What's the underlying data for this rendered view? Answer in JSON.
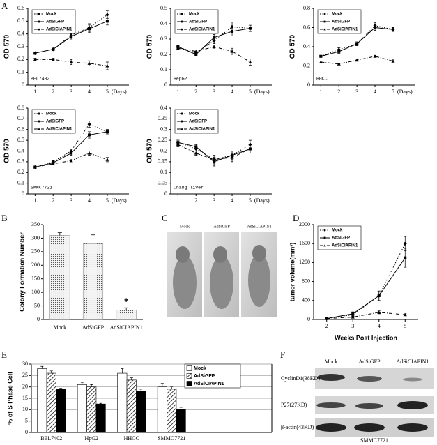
{
  "panel_labels": [
    "A",
    "B",
    "C",
    "D",
    "E",
    "F"
  ],
  "chart_data": [
    {
      "type": "line",
      "annotation": "BEL7402",
      "ylabel": "OD 570",
      "xlabel": "(Days)",
      "x": [
        1,
        2,
        3,
        4,
        5
      ],
      "xlim": [
        0.6,
        6.2
      ],
      "xticks": [
        1,
        2,
        3,
        4,
        5
      ],
      "ylim": [
        0,
        0.6
      ],
      "yticks": [
        0,
        0.1,
        0.2,
        0.3,
        0.4,
        0.5,
        0.6
      ],
      "legend": "upper left",
      "series": [
        {
          "name": "Mock",
          "color": "#000000",
          "dash": "dotted",
          "marker": "diamond",
          "values": [
            0.25,
            0.28,
            0.39,
            0.45,
            0.55
          ],
          "errors": [
            0.01,
            0.01,
            0.02,
            0.03,
            0.03
          ]
        },
        {
          "name": "AdSiGFP",
          "color": "#000000",
          "dash": "solid",
          "marker": "square",
          "values": [
            0.25,
            0.28,
            0.38,
            0.44,
            0.5
          ],
          "errors": [
            0.01,
            0.01,
            0.02,
            0.03,
            0.03
          ]
        },
        {
          "name": "AdSiCIAPIN1",
          "color": "#000000",
          "dash": "dashdot",
          "marker": "triangle",
          "values": [
            0.2,
            0.2,
            0.18,
            0.17,
            0.15
          ],
          "errors": [
            0.01,
            0.01,
            0.02,
            0.02,
            0.03
          ]
        }
      ]
    },
    {
      "type": "line",
      "annotation": "HepG2",
      "ylabel": "OD 570",
      "xlabel": "(Days)",
      "x": [
        1,
        2,
        3,
        4,
        5
      ],
      "xlim": [
        0.6,
        6.2
      ],
      "xticks": [
        1,
        2,
        3,
        4,
        5
      ],
      "ylim": [
        0,
        0.5
      ],
      "yticks": [
        0,
        0.1,
        0.2,
        0.3,
        0.4,
        0.5
      ],
      "legend": "upper left",
      "series": [
        {
          "name": "Mock",
          "color": "#000000",
          "dash": "dotted",
          "marker": "diamond",
          "values": [
            0.25,
            0.21,
            0.29,
            0.38,
            0.37
          ],
          "errors": [
            0.01,
            0.01,
            0.02,
            0.03,
            0.02
          ]
        },
        {
          "name": "AdSiGFP",
          "color": "#000000",
          "dash": "solid",
          "marker": "square",
          "values": [
            0.25,
            0.2,
            0.31,
            0.35,
            0.37
          ],
          "errors": [
            0.01,
            0.01,
            0.02,
            0.03,
            0.02
          ]
        },
        {
          "name": "AdSiCIAPIN1",
          "color": "#000000",
          "dash": "dashdot",
          "marker": "triangle",
          "values": [
            0.24,
            0.22,
            0.25,
            0.22,
            0.15
          ],
          "errors": [
            0.01,
            0.01,
            0.01,
            0.02,
            0.02
          ]
        }
      ]
    },
    {
      "type": "line",
      "annotation": "HHCC",
      "ylabel": "OD 570",
      "xlabel": "(Days)",
      "x": [
        1,
        2,
        3,
        4,
        5
      ],
      "xlim": [
        0.6,
        6.2
      ],
      "xticks": [
        1,
        2,
        3,
        4,
        5
      ],
      "ylim": [
        0,
        0.8
      ],
      "yticks": [
        0,
        0.2,
        0.4,
        0.6,
        0.8
      ],
      "legend": "upper left",
      "series": [
        {
          "name": "Mock",
          "color": "#000000",
          "dash": "dotted",
          "marker": "diamond",
          "values": [
            0.3,
            0.37,
            0.43,
            0.62,
            0.58
          ],
          "errors": [
            0.01,
            0.02,
            0.02,
            0.03,
            0.02
          ]
        },
        {
          "name": "AdSiGFP",
          "color": "#000000",
          "dash": "solid",
          "marker": "square",
          "values": [
            0.3,
            0.35,
            0.43,
            0.6,
            0.58
          ],
          "errors": [
            0.01,
            0.02,
            0.02,
            0.03,
            0.02
          ]
        },
        {
          "name": "AdSiCIAPIN1",
          "color": "#000000",
          "dash": "dashdot",
          "marker": "triangle",
          "values": [
            0.24,
            0.22,
            0.26,
            0.3,
            0.25
          ],
          "errors": [
            0.01,
            0.01,
            0.01,
            0.01,
            0.02
          ]
        }
      ]
    },
    {
      "type": "line",
      "annotation": "SMMC7721",
      "ylabel": "OD 570",
      "xlabel": "(Days)",
      "x": [
        1,
        2,
        3,
        4,
        5
      ],
      "xlim": [
        0.6,
        6.2
      ],
      "xticks": [
        1,
        2,
        3,
        4,
        5
      ],
      "ylim": [
        0,
        0.8
      ],
      "yticks": [
        0,
        0.1,
        0.2,
        0.3,
        0.4,
        0.5,
        0.6,
        0.7,
        0.8
      ],
      "legend": "upper left",
      "series": [
        {
          "name": "Mock",
          "color": "#000000",
          "dash": "dotted",
          "marker": "diamond",
          "values": [
            0.25,
            0.3,
            0.4,
            0.65,
            0.58
          ],
          "errors": [
            0.01,
            0.01,
            0.02,
            0.03,
            0.02
          ]
        },
        {
          "name": "AdSiGFP",
          "color": "#000000",
          "dash": "solid",
          "marker": "square",
          "values": [
            0.25,
            0.29,
            0.38,
            0.55,
            0.58
          ],
          "errors": [
            0.01,
            0.01,
            0.02,
            0.03,
            0.02
          ]
        },
        {
          "name": "AdSiCIAPIN1",
          "color": "#000000",
          "dash": "dashdot",
          "marker": "triangle",
          "values": [
            0.25,
            0.28,
            0.31,
            0.38,
            0.32
          ],
          "errors": [
            0.01,
            0.01,
            0.01,
            0.02,
            0.02
          ]
        }
      ]
    },
    {
      "type": "line",
      "annotation": "Chang liver",
      "ylabel": "OD 570",
      "xlabel": "(Days)",
      "x": [
        1,
        2,
        3,
        4,
        5
      ],
      "xlim": [
        0.6,
        6.2
      ],
      "xticks": [
        1,
        2,
        3,
        4,
        5
      ],
      "ylim": [
        0,
        0.4
      ],
      "yticks": [
        0,
        0.05,
        0.1,
        0.15,
        0.2,
        0.25,
        0.3,
        0.35,
        0.4
      ],
      "legend": "upper left",
      "series": [
        {
          "name": "Mock",
          "color": "#000000",
          "dash": "dotted",
          "marker": "diamond",
          "values": [
            0.24,
            0.21,
            0.16,
            0.18,
            0.23
          ],
          "errors": [
            0.01,
            0.01,
            0.02,
            0.02,
            0.02
          ]
        },
        {
          "name": "AdSiGFP",
          "color": "#000000",
          "dash": "solid",
          "marker": "square",
          "values": [
            0.24,
            0.22,
            0.15,
            0.18,
            0.21
          ],
          "errors": [
            0.01,
            0.01,
            0.02,
            0.02,
            0.02
          ]
        },
        {
          "name": "AdSiCIAPIN1",
          "color": "#000000",
          "dash": "dashdot",
          "marker": "triangle",
          "values": [
            0.23,
            0.19,
            0.16,
            0.17,
            0.21
          ],
          "errors": [
            0.01,
            0.01,
            0.01,
            0.02,
            0.02
          ]
        }
      ]
    },
    {
      "type": "bar",
      "ylabel": "Colony Formation Number",
      "annotation": "*",
      "categories": [
        "Mock",
        "AdSiGFP",
        "AdSiCIAPIN1"
      ],
      "values": [
        310,
        280,
        35
      ],
      "errors": [
        10,
        32,
        8
      ],
      "color": "#f2f2f2",
      "pattern": "dots",
      "ylim": [
        0,
        350
      ],
      "yticks": [
        0,
        50,
        100,
        150,
        200,
        250,
        300,
        350
      ]
    },
    {
      "type": "line",
      "ylabel": "tumor volume(mm³)",
      "xlabel": "Weeks Post Injection",
      "x": [
        2,
        3,
        4,
        5
      ],
      "xlim": [
        1.5,
        5.5
      ],
      "xticks": [
        2,
        3,
        4,
        5
      ],
      "ylim": [
        0,
        2000
      ],
      "yticks": [
        0,
        400,
        800,
        1200,
        1600,
        2000
      ],
      "legend": "upper left",
      "series": [
        {
          "name": "Mock",
          "color": "#000000",
          "dash": "dotted",
          "marker": "diamond",
          "values": [
            20,
            100,
            500,
            1600
          ],
          "errors": [
            5,
            40,
            100,
            150
          ]
        },
        {
          "name": "AdSiGFP",
          "color": "#000000",
          "dash": "solid",
          "marker": "square",
          "values": [
            20,
            120,
            500,
            1300
          ],
          "errors": [
            5,
            40,
            100,
            200
          ]
        },
        {
          "name": "AdSiCIAPIN1",
          "color": "#000000",
          "dash": "dashdot",
          "marker": "triangle",
          "values": [
            20,
            50,
            150,
            100
          ],
          "errors": [
            5,
            20,
            30,
            20
          ]
        }
      ]
    },
    {
      "type": "grouped_bar",
      "ylabel": "% of S Phase Cell",
      "categories": [
        "BEL7402",
        "HpG2",
        "HHCC",
        "SMMC7721"
      ],
      "legend": "upper right",
      "grid": true,
      "ylim": [
        0,
        30
      ],
      "yticks": [
        0,
        5,
        10,
        15,
        20,
        25,
        30
      ],
      "series": [
        {
          "name": "Mock",
          "color": "#ffffff",
          "values": [
            28,
            21,
            26,
            20
          ],
          "errors": [
            1,
            1,
            2,
            1.5
          ]
        },
        {
          "name": "AdSiGFP",
          "color": "#ffffff",
          "pattern": "hatch",
          "values": [
            26,
            20,
            23,
            19
          ],
          "errors": [
            1,
            1,
            1,
            1
          ]
        },
        {
          "name": "AdSiCIAPIN1",
          "color": "#000000",
          "values": [
            19,
            12.5,
            18,
            10
          ],
          "errors": [
            0.5,
            0.3,
            1,
            1
          ]
        }
      ]
    }
  ],
  "photo": {
    "labels": [
      "Mock",
      "AdSiGFP",
      "AdSiCIAPIN1"
    ]
  },
  "blot": {
    "columns": [
      "Mock",
      "AdSiGFP",
      "AdSiCIAPIN1"
    ],
    "rows": [
      "CyclinD1(38KD)",
      "P27(27KD)",
      "β-actin(43KD)"
    ],
    "caption": "SMMC7721"
  }
}
